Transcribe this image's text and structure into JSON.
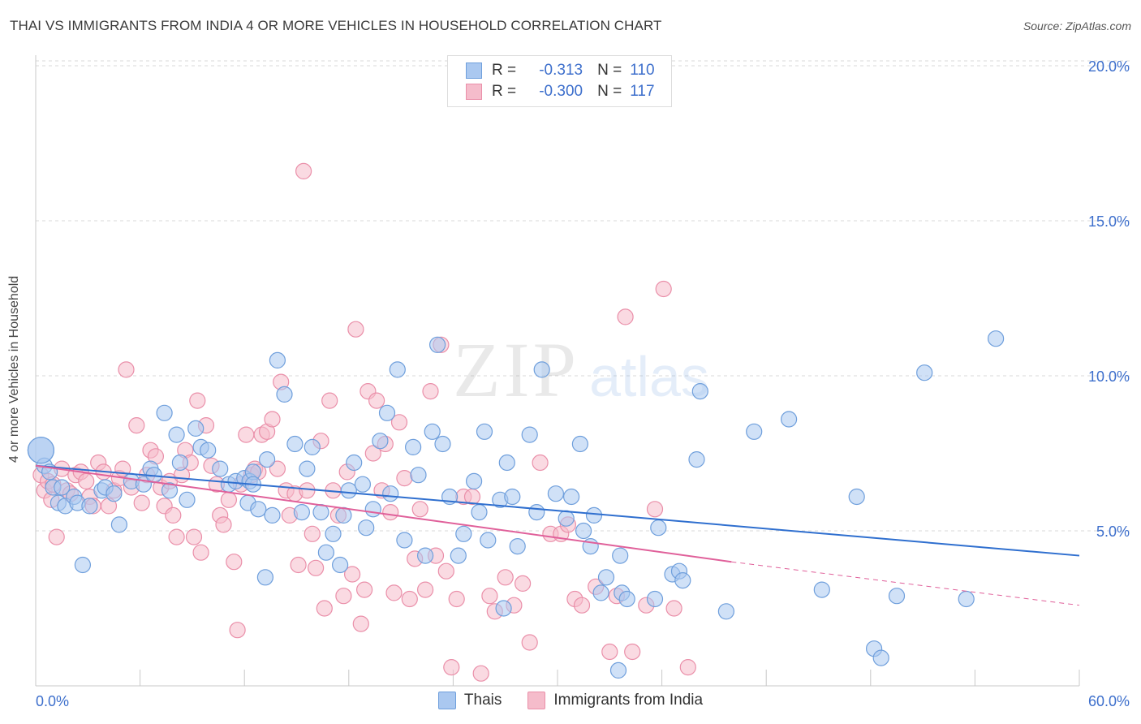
{
  "header": {
    "title": "THAI VS IMMIGRANTS FROM INDIA 4 OR MORE VEHICLES IN HOUSEHOLD CORRELATION CHART",
    "source": "Source: ZipAtlas.com"
  },
  "watermark": {
    "zip": "ZIP",
    "atlas": "atlas"
  },
  "legend": {
    "rows": [
      {
        "r_label": "R =",
        "r_value": "-0.313",
        "n_label": "N =",
        "n_value": "110",
        "color": "#5b8fd9"
      },
      {
        "r_label": "R =",
        "r_value": "-0.300",
        "n_label": "N =",
        "n_value": "117",
        "color": "#e8799a"
      }
    ]
  },
  "colors": {
    "thai_fill": "#aac8f0",
    "thai_stroke": "#6f9fdc",
    "thai_line": "#2f6fcf",
    "india_fill": "#f5bccb",
    "india_stroke": "#ea8fa9",
    "india_line": "#e0609a",
    "axis_text": "#3d6fcc",
    "grid": "#d9d9d9"
  },
  "chart_data": {
    "type": "scatter",
    "title": "THAI VS IMMIGRANTS FROM INDIA 4 OR MORE VEHICLES IN HOUSEHOLD CORRELATION CHART",
    "xlabel": "",
    "ylabel": "4 or more Vehicles in Household",
    "xlim": [
      0,
      60
    ],
    "ylim": [
      0,
      20
    ],
    "x_tick_labels": [
      "0.0%",
      "60.0%"
    ],
    "y_tick_labels": [
      "5.0%",
      "10.0%",
      "15.0%",
      "20.0%"
    ],
    "y_ticks": [
      5,
      10,
      15,
      20
    ],
    "grid": "horizontal dashed",
    "legend_position": "top-center",
    "series": [
      {
        "name": "Thais",
        "trend": {
          "x": [
            0,
            60
          ],
          "y": [
            7.1,
            4.2
          ]
        },
        "points": [
          [
            0.3,
            7.6
          ],
          [
            0.5,
            7.1
          ],
          [
            0.8,
            6.9
          ],
          [
            1.0,
            6.4
          ],
          [
            1.3,
            5.9
          ],
          [
            1.5,
            6.4
          ],
          [
            1.7,
            5.8
          ],
          [
            2.2,
            6.1
          ],
          [
            2.4,
            5.9
          ],
          [
            2.7,
            3.9
          ],
          [
            3.1,
            5.8
          ],
          [
            3.8,
            6.3
          ],
          [
            4.0,
            6.4
          ],
          [
            4.5,
            6.2
          ],
          [
            4.8,
            5.2
          ],
          [
            5.5,
            6.6
          ],
          [
            6.2,
            6.5
          ],
          [
            6.6,
            7.0
          ],
          [
            6.8,
            6.8
          ],
          [
            7.4,
            8.8
          ],
          [
            7.7,
            6.3
          ],
          [
            8.1,
            8.1
          ],
          [
            8.3,
            7.2
          ],
          [
            8.7,
            6.0
          ],
          [
            9.2,
            8.3
          ],
          [
            9.5,
            7.7
          ],
          [
            9.9,
            7.6
          ],
          [
            10.6,
            7.0
          ],
          [
            11.1,
            6.5
          ],
          [
            11.5,
            6.6
          ],
          [
            12.0,
            6.7
          ],
          [
            12.2,
            5.9
          ],
          [
            12.3,
            6.6
          ],
          [
            12.5,
            6.9
          ],
          [
            12.5,
            6.5
          ],
          [
            12.8,
            5.7
          ],
          [
            13.2,
            3.5
          ],
          [
            13.3,
            7.3
          ],
          [
            13.6,
            5.5
          ],
          [
            13.9,
            10.5
          ],
          [
            14.3,
            9.4
          ],
          [
            14.9,
            7.8
          ],
          [
            15.3,
            5.6
          ],
          [
            15.6,
            7.0
          ],
          [
            15.9,
            7.7
          ],
          [
            16.4,
            5.6
          ],
          [
            16.7,
            4.3
          ],
          [
            17.1,
            4.9
          ],
          [
            17.5,
            3.9
          ],
          [
            17.7,
            5.5
          ],
          [
            18.0,
            6.3
          ],
          [
            18.3,
            7.2
          ],
          [
            18.8,
            6.5
          ],
          [
            19.0,
            5.1
          ],
          [
            19.4,
            5.7
          ],
          [
            19.8,
            7.9
          ],
          [
            20.2,
            8.8
          ],
          [
            20.4,
            6.2
          ],
          [
            20.8,
            10.2
          ],
          [
            21.2,
            4.7
          ],
          [
            21.7,
            7.7
          ],
          [
            22.0,
            6.8
          ],
          [
            22.4,
            4.2
          ],
          [
            22.8,
            8.2
          ],
          [
            23.1,
            11.0
          ],
          [
            23.4,
            7.8
          ],
          [
            23.8,
            6.1
          ],
          [
            24.3,
            4.2
          ],
          [
            24.6,
            4.9
          ],
          [
            25.2,
            6.6
          ],
          [
            25.5,
            5.6
          ],
          [
            25.8,
            8.2
          ],
          [
            26.0,
            4.7
          ],
          [
            26.7,
            6.0
          ],
          [
            26.9,
            2.5
          ],
          [
            27.1,
            7.2
          ],
          [
            27.4,
            6.1
          ],
          [
            27.7,
            4.5
          ],
          [
            28.4,
            8.1
          ],
          [
            28.8,
            5.6
          ],
          [
            29.1,
            10.2
          ],
          [
            29.9,
            6.2
          ],
          [
            30.5,
            5.4
          ],
          [
            30.8,
            6.1
          ],
          [
            31.3,
            7.8
          ],
          [
            31.5,
            5.0
          ],
          [
            31.9,
            4.5
          ],
          [
            32.1,
            5.5
          ],
          [
            32.5,
            3.0
          ],
          [
            32.8,
            3.5
          ],
          [
            33.5,
            0.5
          ],
          [
            33.6,
            4.2
          ],
          [
            33.7,
            3.0
          ],
          [
            34.0,
            2.8
          ],
          [
            35.6,
            2.8
          ],
          [
            35.8,
            5.1
          ],
          [
            36.6,
            3.6
          ],
          [
            37.0,
            3.7
          ],
          [
            37.2,
            3.4
          ],
          [
            38.0,
            7.3
          ],
          [
            38.2,
            9.5
          ],
          [
            39.7,
            2.4
          ],
          [
            41.3,
            8.2
          ],
          [
            43.3,
            8.6
          ],
          [
            45.2,
            3.1
          ],
          [
            47.2,
            6.1
          ],
          [
            48.2,
            1.2
          ],
          [
            48.6,
            0.9
          ],
          [
            49.5,
            2.9
          ],
          [
            51.1,
            10.1
          ],
          [
            53.5,
            2.8
          ],
          [
            55.2,
            11.2
          ]
        ]
      },
      {
        "name": "Immigrants from India",
        "trend": {
          "x": [
            0,
            40
          ],
          "y": [
            7.1,
            4.0
          ]
        },
        "trend_extension": {
          "x": [
            40,
            60
          ],
          "y": [
            4.0,
            2.6
          ]
        },
        "points": [
          [
            0.3,
            6.8
          ],
          [
            0.5,
            6.3
          ],
          [
            0.7,
            6.6
          ],
          [
            0.9,
            6.0
          ],
          [
            1.0,
            6.5
          ],
          [
            1.2,
            4.8
          ],
          [
            1.5,
            7.0
          ],
          [
            1.8,
            6.3
          ],
          [
            2.0,
            6.2
          ],
          [
            2.3,
            6.8
          ],
          [
            2.6,
            6.9
          ],
          [
            2.9,
            6.6
          ],
          [
            3.1,
            6.1
          ],
          [
            3.3,
            5.8
          ],
          [
            3.6,
            7.2
          ],
          [
            3.9,
            6.9
          ],
          [
            4.2,
            5.8
          ],
          [
            4.5,
            6.3
          ],
          [
            4.8,
            6.7
          ],
          [
            5.0,
            7.0
          ],
          [
            5.2,
            10.2
          ],
          [
            5.5,
            6.4
          ],
          [
            5.8,
            8.4
          ],
          [
            6.1,
            5.9
          ],
          [
            6.4,
            6.8
          ],
          [
            6.6,
            7.6
          ],
          [
            6.9,
            7.4
          ],
          [
            7.2,
            6.4
          ],
          [
            7.4,
            5.8
          ],
          [
            7.7,
            6.6
          ],
          [
            7.9,
            5.5
          ],
          [
            8.1,
            4.8
          ],
          [
            8.4,
            6.8
          ],
          [
            8.6,
            7.6
          ],
          [
            8.9,
            7.2
          ],
          [
            9.1,
            4.8
          ],
          [
            9.3,
            9.2
          ],
          [
            9.5,
            4.3
          ],
          [
            9.8,
            8.4
          ],
          [
            10.1,
            7.1
          ],
          [
            10.4,
            6.5
          ],
          [
            10.6,
            5.5
          ],
          [
            10.8,
            5.2
          ],
          [
            11.1,
            6.0
          ],
          [
            11.4,
            4.0
          ],
          [
            11.6,
            1.8
          ],
          [
            11.8,
            6.5
          ],
          [
            12.1,
            8.1
          ],
          [
            12.4,
            6.8
          ],
          [
            12.6,
            7.0
          ],
          [
            12.8,
            6.9
          ],
          [
            13.0,
            8.1
          ],
          [
            13.3,
            8.2
          ],
          [
            13.6,
            8.6
          ],
          [
            13.9,
            7.0
          ],
          [
            14.1,
            9.8
          ],
          [
            14.4,
            6.3
          ],
          [
            14.6,
            5.5
          ],
          [
            14.9,
            6.2
          ],
          [
            15.1,
            3.9
          ],
          [
            15.4,
            16.6
          ],
          [
            15.6,
            6.3
          ],
          [
            15.9,
            4.9
          ],
          [
            16.1,
            3.8
          ],
          [
            16.4,
            7.9
          ],
          [
            16.6,
            2.5
          ],
          [
            16.9,
            9.2
          ],
          [
            17.1,
            6.3
          ],
          [
            17.4,
            5.5
          ],
          [
            17.7,
            2.9
          ],
          [
            17.9,
            6.9
          ],
          [
            18.2,
            3.6
          ],
          [
            18.4,
            11.5
          ],
          [
            18.7,
            2.0
          ],
          [
            18.9,
            3.1
          ],
          [
            19.1,
            9.5
          ],
          [
            19.4,
            7.5
          ],
          [
            19.6,
            9.2
          ],
          [
            19.9,
            6.3
          ],
          [
            20.1,
            7.8
          ],
          [
            20.4,
            5.6
          ],
          [
            20.6,
            3.0
          ],
          [
            20.9,
            8.5
          ],
          [
            21.2,
            6.7
          ],
          [
            21.5,
            2.8
          ],
          [
            21.8,
            4.1
          ],
          [
            22.1,
            5.7
          ],
          [
            22.4,
            3.1
          ],
          [
            22.7,
            9.5
          ],
          [
            23.0,
            4.2
          ],
          [
            23.3,
            11.0
          ],
          [
            23.6,
            3.7
          ],
          [
            23.9,
            0.6
          ],
          [
            24.2,
            2.8
          ],
          [
            24.6,
            6.1
          ],
          [
            25.1,
            6.1
          ],
          [
            25.6,
            0.4
          ],
          [
            26.1,
            2.9
          ],
          [
            26.4,
            2.4
          ],
          [
            27.0,
            3.5
          ],
          [
            27.5,
            2.6
          ],
          [
            28.0,
            3.3
          ],
          [
            28.4,
            1.4
          ],
          [
            29.0,
            7.2
          ],
          [
            29.6,
            4.9
          ],
          [
            30.2,
            4.9
          ],
          [
            30.6,
            5.2
          ],
          [
            31.0,
            2.8
          ],
          [
            31.4,
            2.6
          ],
          [
            32.2,
            3.2
          ],
          [
            33.0,
            1.1
          ],
          [
            33.4,
            2.9
          ],
          [
            33.9,
            11.9
          ],
          [
            34.3,
            1.1
          ],
          [
            35.1,
            2.6
          ],
          [
            35.6,
            5.7
          ],
          [
            36.1,
            12.8
          ],
          [
            36.7,
            2.5
          ],
          [
            37.5,
            0.6
          ]
        ]
      }
    ]
  },
  "bottom_legend": {
    "items": [
      {
        "label": "Thais"
      },
      {
        "label": "Immigrants from India"
      }
    ]
  }
}
